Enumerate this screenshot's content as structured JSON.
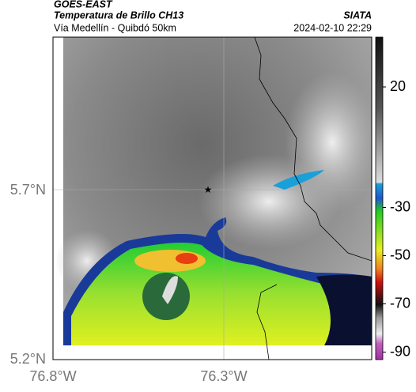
{
  "header": {
    "product": "GOES-EAST",
    "title": "Temperatura de Brillo CH13",
    "subtitle": "Vía Medellín - Quibdó 50km",
    "source": "SIATA",
    "timestamp": "2024-02-10 22:29"
  },
  "map": {
    "lat_labels": [
      "5.7°N",
      "5.2°N"
    ],
    "lon_labels": [
      "76.8°W",
      "76.3°W"
    ]
  },
  "colorbar": {
    "ticks": [
      20,
      -30,
      -50,
      -70,
      -90
    ]
  }
}
